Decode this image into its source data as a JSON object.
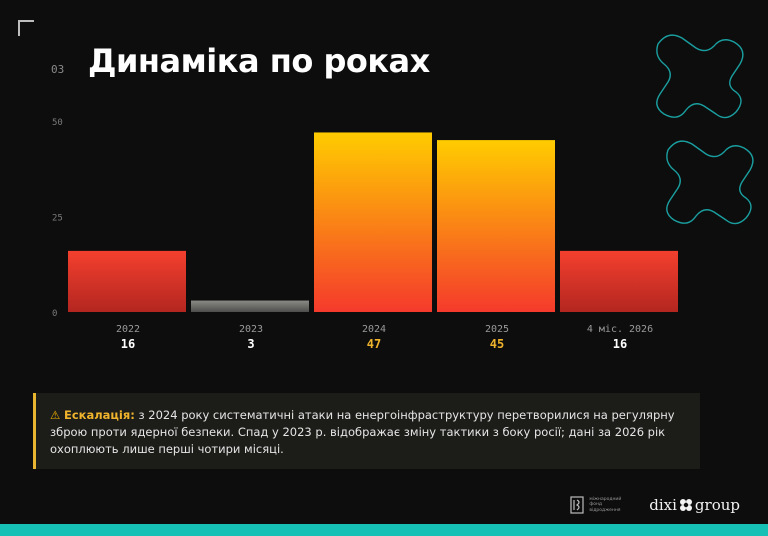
{
  "slide": {
    "number": "03",
    "title": "Динаміка по роках"
  },
  "chart_data": {
    "type": "bar",
    "categories": [
      "2022",
      "2023",
      "2024",
      "2025",
      "4 міс. 2026"
    ],
    "values": [
      16,
      3,
      47,
      45,
      16
    ],
    "value_labels": [
      "16",
      "3",
      "47",
      "45",
      "16"
    ],
    "ylim": [
      0,
      50
    ],
    "yticks": [
      "0",
      "25",
      "50"
    ],
    "grid": false,
    "colors": {
      "red_top": "#f4402e",
      "red_bottom": "#b32620",
      "gray_top": "#8a8a86",
      "gray_bottom": "#4e4e4c",
      "orange_top": "#ffcc00",
      "orange_bottom": "#f53a2c",
      "label_highlight": "#f0b42c",
      "label_normal": "#ffffff"
    },
    "highlight": [
      false,
      false,
      true,
      true,
      false
    ]
  },
  "callout": {
    "icon": "⚠",
    "lead": "Ескалація:",
    "text": " з 2024 року систематичні атаки на енергоінфраструктуру перетворилися на регулярну зброю проти ядерної безпеки. Спад у 2023 р. відображає зміну тактики з боку росії; дані за 2026 рік охоплюють лише перші чотири місяці."
  },
  "footer": {
    "irf_lines": [
      "міжнародний",
      "фонд",
      "відродження"
    ],
    "dixi_left": "dixi",
    "dixi_right": "group"
  },
  "theme": {
    "accent_teal": "#17c0b5",
    "accent_yellow": "#e8b530"
  }
}
